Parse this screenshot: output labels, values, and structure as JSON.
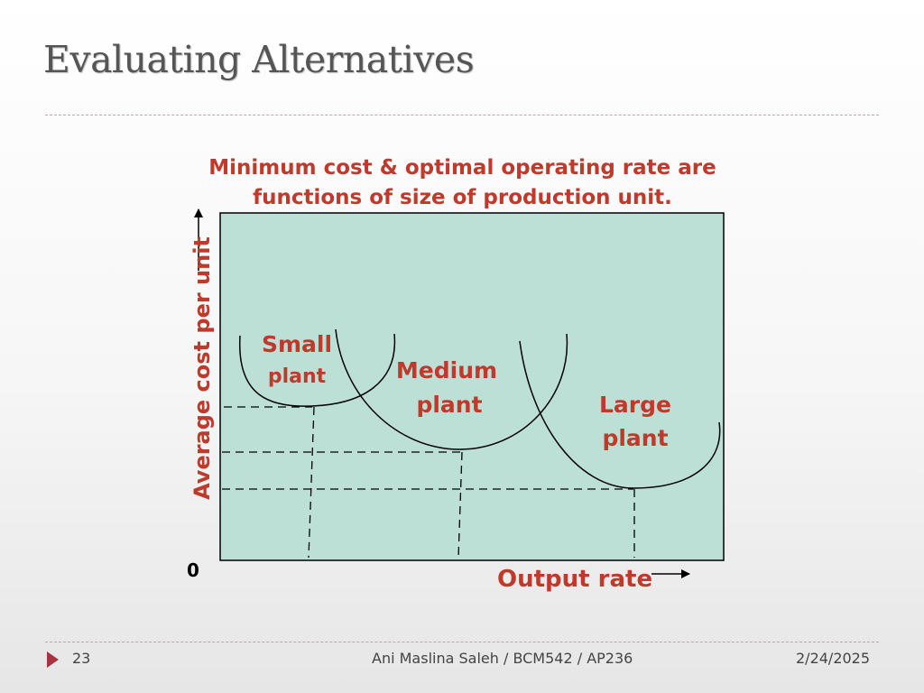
{
  "title": "Evaluating Alternatives",
  "caption_line1": "Minimum cost & optimal operating rate are",
  "caption_line2": "functions of size of production unit.",
  "diagram": {
    "y_axis_label": "Average cost per unit",
    "x_axis_label": "Output rate",
    "origin_label": "0",
    "curves": [
      {
        "label_line1": "Small",
        "label_line2": "plant"
      },
      {
        "label_line1": "Medium",
        "label_line2": "plant"
      },
      {
        "label_line1": "Large",
        "label_line2": "plant"
      }
    ]
  },
  "footer": {
    "page_number": "23",
    "author": "Ani Maslina Saleh / BCM542 / AP236",
    "date": "2/24/2025"
  },
  "colors": {
    "accent_red": "#c0392b",
    "plot_background": "#bde0d6",
    "footer_arrow": "#a8323e"
  }
}
